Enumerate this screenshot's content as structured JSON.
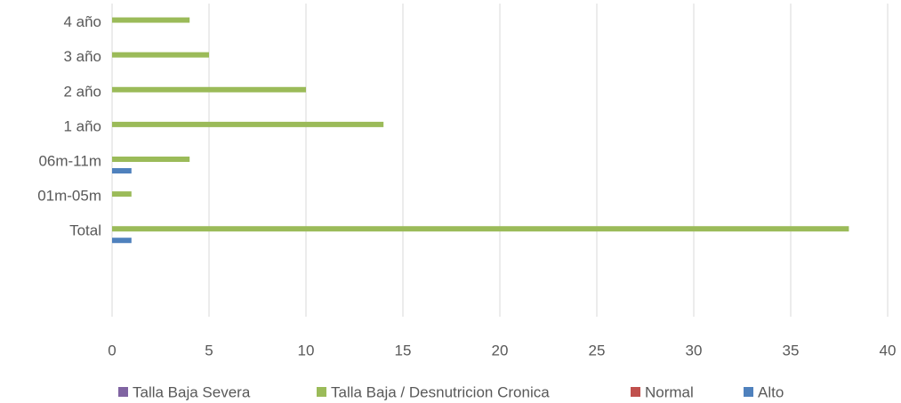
{
  "chart_data": {
    "type": "barh",
    "categories": [
      "4 año",
      "3 año",
      "2 año",
      "1 año",
      "06m-11m",
      "01m-05m",
      "Total",
      null,
      null
    ],
    "series": [
      {
        "name": "Talla Baja Severa",
        "color": "#8064a2",
        "values": [
          0,
          0,
          0,
          0,
          0,
          0,
          0,
          null,
          null
        ]
      },
      {
        "name": "Talla Baja / Desnutricion Cronica",
        "color": "#9bbb59",
        "values": [
          4,
          5,
          10,
          14,
          4,
          1,
          38,
          null,
          null
        ]
      },
      {
        "name": "Normal",
        "color": "#c0504d",
        "values": [
          0,
          0,
          0,
          0,
          0,
          0,
          0,
          null,
          null
        ]
      },
      {
        "name": "Alto",
        "color": "#4f81bd",
        "values": [
          0,
          0,
          0,
          0,
          1,
          0,
          1,
          null,
          null
        ]
      }
    ],
    "xlim": [
      0,
      40
    ],
    "xticks": [
      0,
      5,
      10,
      15,
      20,
      25,
      30,
      35,
      40
    ],
    "grid": true,
    "legend": "bottom"
  }
}
